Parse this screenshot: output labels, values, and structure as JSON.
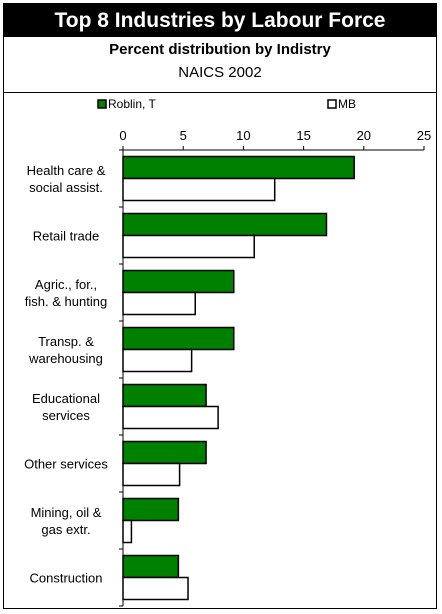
{
  "header": {
    "title": "Top 8 Industries by Labour Force",
    "subtitle": "Percent distribution by Indistry",
    "classification": "NAICS 2002"
  },
  "colors": {
    "series1": "#008000",
    "series2": "#ffffff",
    "stroke": "#000000"
  },
  "chart_data": {
    "type": "bar",
    "orientation": "horizontal",
    "categories": [
      [
        "Health care &",
        "social assist."
      ],
      [
        "Retail trade"
      ],
      [
        "Agric., for.,",
        "fish. & hunting"
      ],
      [
        "Transp. &",
        "warehousing"
      ],
      [
        "Educational",
        "services"
      ],
      [
        "Other services"
      ],
      [
        "Mining, oil &",
        "gas extr."
      ],
      [
        "Construction"
      ]
    ],
    "series": [
      {
        "name": "Roblin, T",
        "values": [
          19.2,
          16.9,
          9.2,
          9.2,
          6.9,
          6.9,
          4.6,
          4.6
        ]
      },
      {
        "name": "MB",
        "values": [
          12.6,
          10.9,
          6.0,
          5.7,
          7.9,
          4.7,
          0.7,
          5.4
        ]
      }
    ],
    "xlim": [
      0,
      25
    ],
    "ticks": [
      "0",
      "5",
      "10",
      "15",
      "20",
      "25"
    ],
    "legend": "top",
    "grid": false
  }
}
